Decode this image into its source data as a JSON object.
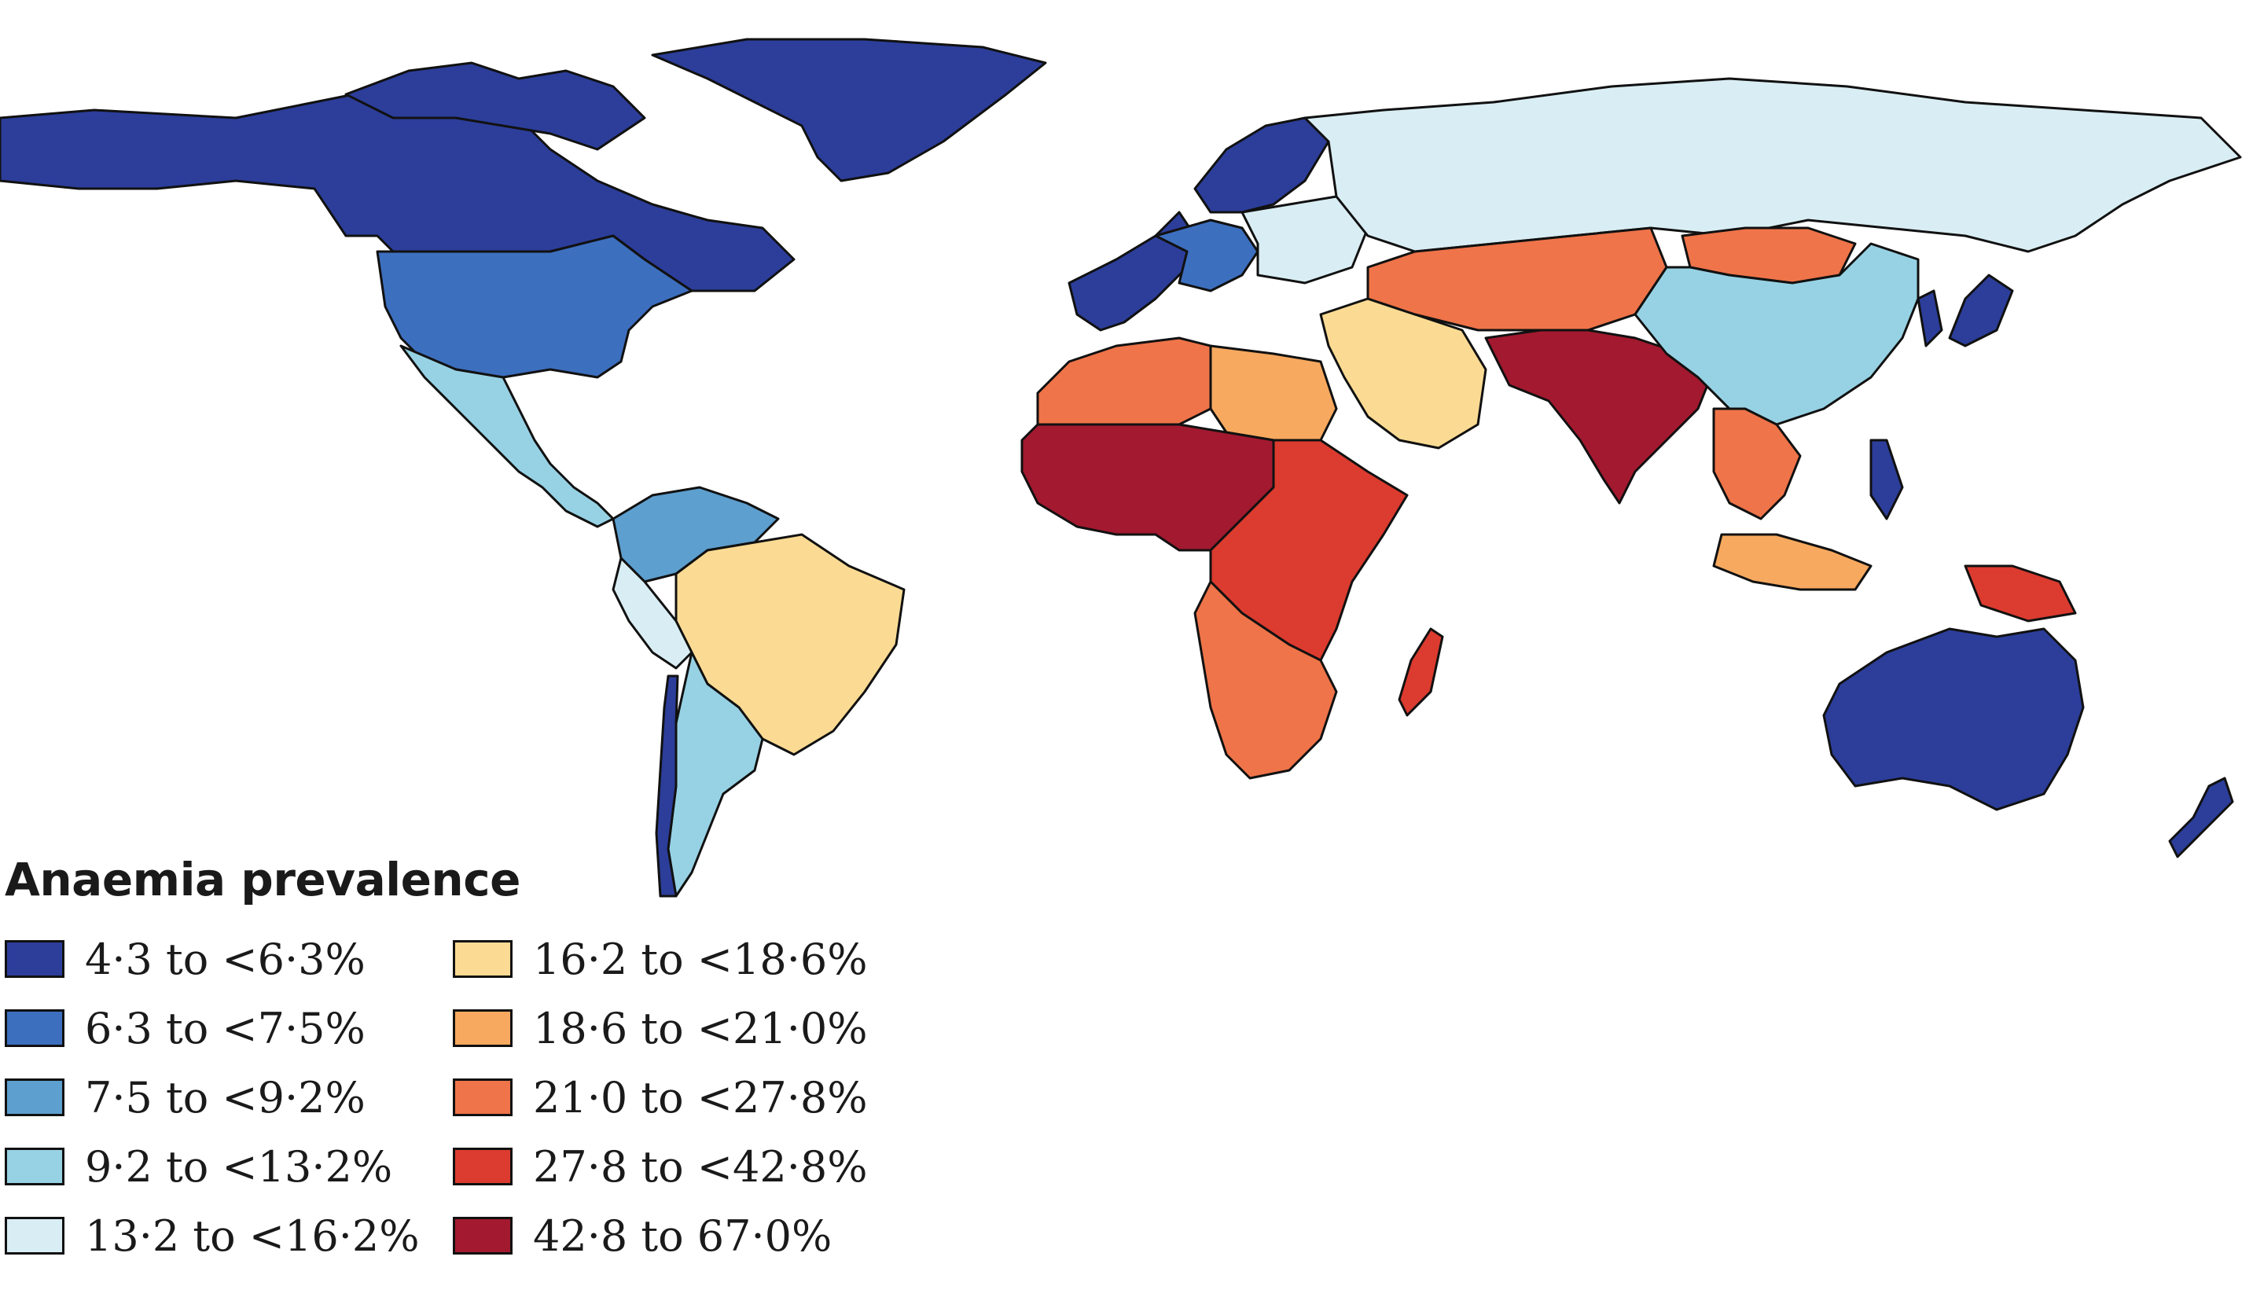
{
  "legend": {
    "title": "Anaemia prevalence",
    "items": [
      {
        "label": "4·3 to <6·3%",
        "color": "#2c3e9a"
      },
      {
        "label": "6·3 to <7·5%",
        "color": "#3d6fbf"
      },
      {
        "label": "7·5 to <9·2%",
        "color": "#5d9fcf"
      },
      {
        "label": "9·2 to <13·2%",
        "color": "#97d2e4"
      },
      {
        "label": "13·2 to <16·2%",
        "color": "#d9eef4"
      },
      {
        "label": "16·2 to <18·6%",
        "color": "#fbdb93"
      },
      {
        "label": "18·6 to <21·0%",
        "color": "#f7a95f"
      },
      {
        "label": "21·0 to <27·8%",
        "color": "#ef7449"
      },
      {
        "label": "27·8 to <42·8%",
        "color": "#dc3b2f"
      },
      {
        "label": "42·8 to 67·0%",
        "color": "#a3192f"
      }
    ]
  },
  "regions": [
    {
      "name": "Canada and Greenland",
      "bin": 0
    },
    {
      "name": "United States",
      "bin": 1
    },
    {
      "name": "Mexico and Central America",
      "bin": 3
    },
    {
      "name": "Colombia and Venezuela",
      "bin": 2
    },
    {
      "name": "Brazil",
      "bin": 5
    },
    {
      "name": "Peru",
      "bin": 4
    },
    {
      "name": "Argentina",
      "bin": 3
    },
    {
      "name": "Chile",
      "bin": 0
    },
    {
      "name": "Western Europe",
      "bin": 0
    },
    {
      "name": "Central Europe",
      "bin": 1
    },
    {
      "name": "Eastern Europe",
      "bin": 4
    },
    {
      "name": "Russia",
      "bin": 4
    },
    {
      "name": "North Africa",
      "bin": 7
    },
    {
      "name": "Egypt",
      "bin": 6
    },
    {
      "name": "Middle East",
      "bin": 5
    },
    {
      "name": "West and Central Africa",
      "bin": 9
    },
    {
      "name": "East Africa",
      "bin": 8
    },
    {
      "name": "Southern Africa",
      "bin": 7
    },
    {
      "name": "Madagascar",
      "bin": 8
    },
    {
      "name": "Central Asia",
      "bin": 7
    },
    {
      "name": "South Asia",
      "bin": 9
    },
    {
      "name": "China",
      "bin": 3
    },
    {
      "name": "Mongolia",
      "bin": 7
    },
    {
      "name": "Japan and Korea",
      "bin": 0
    },
    {
      "name": "Southeast Asia",
      "bin": 7
    },
    {
      "name": "Indonesia",
      "bin": 6
    },
    {
      "name": "Papua New Guinea",
      "bin": 8
    },
    {
      "name": "Philippines",
      "bin": 0
    },
    {
      "name": "Australia",
      "bin": 0
    },
    {
      "name": "New Zealand",
      "bin": 0
    }
  ]
}
